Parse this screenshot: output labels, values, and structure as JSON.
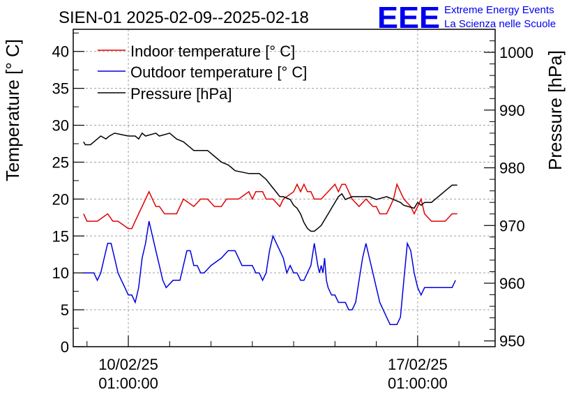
{
  "chart_data": {
    "type": "line",
    "title": "SIEN-01 2025-02-09--2025-02-18",
    "ylabel_left": "Temperature [° C]",
    "ylabel_right": "Pressure [hPa]",
    "ylim_left": [
      0,
      43
    ],
    "ylim_right": [
      949,
      1004
    ],
    "yticks_left": [
      0,
      5,
      10,
      15,
      20,
      25,
      30,
      35,
      40
    ],
    "yticks_right": [
      950,
      960,
      970,
      980,
      990,
      1000
    ],
    "x_start": "09/02/25 00:00",
    "x_end": "18/02/25 00:00",
    "x_hours_range": [
      -32,
      213
    ],
    "xticks": [
      {
        "hours": 0,
        "line1": "10/02/25",
        "line2": "01:00:00"
      },
      {
        "hours": 168,
        "line1": "17/02/25",
        "line2": "01:00:00"
      }
    ],
    "legend_position": "top-left",
    "series": [
      {
        "name": "Indoor temperature [° C]",
        "color": "#e00000",
        "axis": "left",
        "x_hours": [
          -26,
          -24,
          -23,
          -18,
          -12,
          -9,
          -6,
          0,
          2,
          4,
          6,
          8,
          10,
          12,
          14,
          16,
          18,
          21,
          28,
          30,
          32,
          38,
          42,
          46,
          50,
          52,
          54,
          57,
          60,
          64,
          70,
          72,
          74,
          78,
          80,
          84,
          88,
          90,
          96,
          98,
          100,
          102,
          104,
          106,
          108,
          112,
          116,
          120,
          122,
          124,
          126,
          130,
          134,
          138,
          142,
          144,
          146,
          148,
          150,
          152,
          154,
          156,
          160,
          164,
          166,
          168,
          170,
          172,
          176,
          180,
          184,
          188,
          191
        ],
        "values": [
          18,
          17,
          17,
          17,
          18,
          17,
          17,
          16,
          16,
          17,
          18,
          19,
          20,
          21,
          20,
          19,
          19,
          18,
          18,
          19,
          20,
          19,
          20,
          20,
          19,
          19,
          19,
          20,
          20,
          20,
          21,
          20,
          21,
          21,
          20,
          20,
          19,
          20,
          21,
          22,
          21,
          22,
          21,
          21,
          20,
          20,
          21,
          22,
          21,
          22,
          22,
          20,
          19,
          20,
          19,
          19,
          18,
          18,
          18,
          19,
          20,
          22,
          20,
          19,
          18,
          19,
          20,
          18,
          17,
          17,
          17,
          18,
          18
        ]
      },
      {
        "name": "Outdoor temperature [° C]",
        "color": "#0000dd",
        "axis": "left",
        "x_hours": [
          -26,
          -20,
          -18,
          -16,
          -14,
          -12,
          -10,
          -8,
          -6,
          -4,
          -2,
          0,
          2,
          4,
          5,
          6,
          8,
          10,
          12,
          14,
          16,
          18,
          20,
          22,
          26,
          30,
          32,
          34,
          36,
          38,
          40,
          42,
          44,
          48,
          54,
          58,
          60,
          62,
          64,
          66,
          68,
          70,
          72,
          74,
          76,
          78,
          80,
          82,
          84,
          86,
          88,
          90,
          92,
          94,
          96,
          98,
          100,
          102,
          104,
          106,
          108,
          110,
          111,
          112,
          113,
          114,
          115,
          116,
          118,
          120,
          122,
          124,
          126,
          128,
          130,
          132,
          134,
          136,
          138,
          140,
          142,
          144,
          146,
          148,
          150,
          152,
          154,
          156,
          158,
          160,
          162,
          164,
          166,
          168,
          170,
          172,
          174,
          176,
          180,
          184,
          188,
          190
        ],
        "values": [
          10,
          10,
          9,
          10,
          12,
          14,
          14,
          12,
          10,
          9,
          8,
          7,
          7,
          6,
          7,
          8,
          12,
          14,
          17,
          15,
          13,
          11,
          9,
          8,
          9,
          9,
          11,
          13,
          13,
          11,
          11,
          10,
          10,
          11,
          12,
          13,
          13,
          13,
          12,
          11,
          11,
          11,
          11,
          10,
          10,
          9,
          10,
          13,
          15,
          14,
          13,
          12,
          10,
          11,
          10,
          10,
          9,
          9,
          10,
          11,
          14,
          11,
          10,
          11,
          10,
          12,
          9,
          8,
          7,
          7,
          6,
          6,
          6,
          5,
          5,
          6,
          9,
          12,
          14,
          12,
          10,
          8,
          6,
          5,
          4,
          3,
          3,
          3,
          4,
          9,
          14,
          13,
          10,
          8,
          7,
          8,
          8,
          8,
          8,
          8,
          8,
          9
        ]
      },
      {
        "name": "Pressure [hPa]",
        "color": "#000000",
        "axis": "right",
        "x_hours": [
          -26,
          -25,
          -22,
          -18,
          -16,
          -13,
          -11,
          -8,
          0,
          4,
          6,
          8,
          10,
          16,
          18,
          24,
          28,
          32,
          36,
          38,
          46,
          50,
          54,
          58,
          60,
          62,
          70,
          76,
          80,
          84,
          88,
          90,
          94,
          96,
          98,
          100,
          102,
          104,
          106,
          108,
          110,
          112,
          114,
          116,
          118,
          120,
          122,
          124,
          126,
          130,
          132,
          136,
          140,
          144,
          150,
          158,
          160,
          166,
          168,
          170,
          172,
          176,
          180,
          184,
          188,
          191
        ],
        "values": [
          984.5,
          984,
          984,
          985,
          985.5,
          985,
          985.5,
          986,
          985.5,
          985.5,
          985,
          986,
          985.5,
          986,
          985.5,
          986,
          985,
          984.5,
          983.5,
          983,
          983,
          982,
          981,
          980.5,
          980,
          979.5,
          979,
          979,
          978,
          976.5,
          975,
          975,
          974.5,
          973.5,
          973,
          972,
          970.5,
          969.5,
          969,
          969,
          969.5,
          970,
          971,
          972,
          973,
          974,
          975,
          975.5,
          974.5,
          975,
          975,
          975,
          975,
          974.5,
          975,
          974,
          973.5,
          973,
          974,
          973.5,
          974,
          974,
          975,
          976,
          977,
          977
        ]
      }
    ]
  },
  "logo": {
    "mark": "EEE",
    "line1": "Extreme Energy Events",
    "line2": "La Scienza nelle Scuole",
    "color": "#0000ee"
  }
}
